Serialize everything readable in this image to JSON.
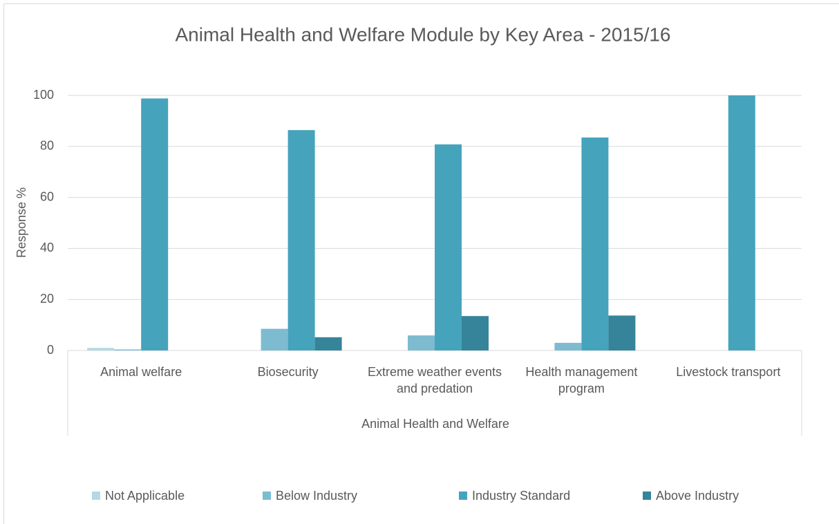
{
  "chart_data": {
    "type": "bar",
    "title": "Animal Health and Welfare Module by Key Area - 2015/16",
    "y_label": "Response %",
    "group_label": "Animal Health and Welfare",
    "categories": [
      "Animal welfare",
      "Biosecurity",
      "Extreme weather events and predation",
      "Health management program",
      "Livestock transport"
    ],
    "series": [
      {
        "name": "Not Applicable",
        "color": "#b4d9e4",
        "values": [
          1.0,
          0,
          0,
          0,
          0
        ]
      },
      {
        "name": "Below Industry",
        "color": "#7dbbd1",
        "values": [
          0.4,
          8.5,
          5.9,
          3.0,
          0
        ]
      },
      {
        "name": "Industry Standard",
        "color": "#46a3bc",
        "values": [
          98.8,
          86.4,
          80.8,
          83.5,
          100
        ]
      },
      {
        "name": "Above Industry",
        "color": "#36849a",
        "values": [
          0,
          5.2,
          13.5,
          13.7,
          0
        ]
      }
    ],
    "ylim": [
      0,
      100
    ],
    "yticks": [
      0,
      20,
      40,
      60,
      80,
      100
    ],
    "grid": true,
    "legend": "bottom"
  }
}
